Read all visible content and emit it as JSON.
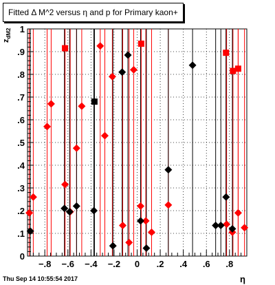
{
  "header": {
    "title": "Fitted Δ M^2 versus η and p for Primary kaon+"
  },
  "footer": {
    "timestamp": "Thu Sep 14 10:55:54 2017"
  },
  "chart_data": {
    "type": "scatter",
    "title": "Fitted Δ M^2 versus η and p for Primary kaon+",
    "xlabel": "η",
    "ylabel_main": "z",
    "ylabel_sub": "dM2",
    "xlim": [
      -0.95,
      0.95
    ],
    "ylim": [
      0,
      1
    ],
    "xticks": [
      -0.8,
      -0.6,
      -0.4,
      -0.2,
      0,
      0.2,
      0.4,
      0.6,
      0.8
    ],
    "yticks": [
      0,
      0.1,
      0.2,
      0.3,
      0.4,
      0.5,
      0.6,
      0.7,
      0.8,
      0.9,
      1
    ],
    "grid": true,
    "series": [
      {
        "color": "#ff0000",
        "points": [
          {
            "x": -0.935,
            "y": 0.19,
            "marker": "diamond"
          },
          {
            "x": -0.9,
            "y": 0.26,
            "marker": "diamond"
          },
          {
            "x": -0.78,
            "y": 0.57,
            "marker": "diamond"
          },
          {
            "x": -0.745,
            "y": 0.67,
            "marker": "diamond"
          },
          {
            "x": -0.625,
            "y": 0.315,
            "marker": "diamond"
          },
          {
            "x": -0.58,
            "y": 0.195,
            "marker": "diamond"
          },
          {
            "x": -0.525,
            "y": 0.475,
            "marker": "diamond"
          },
          {
            "x": -0.48,
            "y": 0.66,
            "marker": "diamond"
          },
          {
            "x": -0.32,
            "y": 0.925,
            "marker": "diamond"
          },
          {
            "x": -0.28,
            "y": 0.53,
            "marker": "diamond"
          },
          {
            "x": -0.215,
            "y": 0.79,
            "marker": "diamond"
          },
          {
            "x": -0.125,
            "y": 0.135,
            "marker": "diamond"
          },
          {
            "x": -0.07,
            "y": 0.06,
            "marker": "diamond"
          },
          {
            "x": -0.03,
            "y": 0.82,
            "marker": "diamond"
          },
          {
            "x": 0.03,
            "y": 0.22,
            "marker": "diamond"
          },
          {
            "x": 0.075,
            "y": 0.155,
            "marker": "diamond"
          },
          {
            "x": 0.125,
            "y": 0.105,
            "marker": "diamond"
          },
          {
            "x": 0.27,
            "y": 0.225,
            "marker": "diamond"
          },
          {
            "x": 0.775,
            "y": 0.14,
            "marker": "diamond"
          },
          {
            "x": 0.825,
            "y": 0.105,
            "marker": "diamond"
          },
          {
            "x": 0.875,
            "y": 0.19,
            "marker": "diamond"
          },
          {
            "x": 0.93,
            "y": 0.125,
            "marker": "diamond"
          },
          {
            "x": -0.625,
            "y": 0.915,
            "marker": "square"
          },
          {
            "x": 0.035,
            "y": 0.935,
            "marker": "square"
          },
          {
            "x": 0.77,
            "y": 0.895,
            "marker": "square"
          },
          {
            "x": 0.83,
            "y": 0.815,
            "marker": "square"
          },
          {
            "x": 0.875,
            "y": 0.825,
            "marker": "square"
          }
        ]
      },
      {
        "color": "#000000",
        "points": [
          {
            "x": -0.925,
            "y": 0.11,
            "marker": "diamond"
          },
          {
            "x": -0.63,
            "y": 0.21,
            "marker": "diamond"
          },
          {
            "x": -0.585,
            "y": 0.195,
            "marker": "diamond"
          },
          {
            "x": -0.525,
            "y": 0.22,
            "marker": "diamond"
          },
          {
            "x": -0.375,
            "y": 0.2,
            "marker": "diamond"
          },
          {
            "x": -0.21,
            "y": 0.045,
            "marker": "diamond"
          },
          {
            "x": -0.13,
            "y": 0.81,
            "marker": "diamond"
          },
          {
            "x": -0.08,
            "y": 0.885,
            "marker": "diamond"
          },
          {
            "x": 0.03,
            "y": 0.155,
            "marker": "diamond"
          },
          {
            "x": 0.08,
            "y": 0.035,
            "marker": "diamond"
          },
          {
            "x": 0.27,
            "y": 0.38,
            "marker": "diamond"
          },
          {
            "x": 0.48,
            "y": 0.84,
            "marker": "diamond"
          },
          {
            "x": 0.68,
            "y": 0.135,
            "marker": "diamond"
          },
          {
            "x": 0.725,
            "y": 0.135,
            "marker": "diamond"
          },
          {
            "x": 0.77,
            "y": 0.26,
            "marker": "diamond"
          },
          {
            "x": 0.825,
            "y": 0.12,
            "marker": "diamond"
          },
          {
            "x": -0.37,
            "y": 0.68,
            "marker": "square"
          }
        ]
      }
    ]
  }
}
